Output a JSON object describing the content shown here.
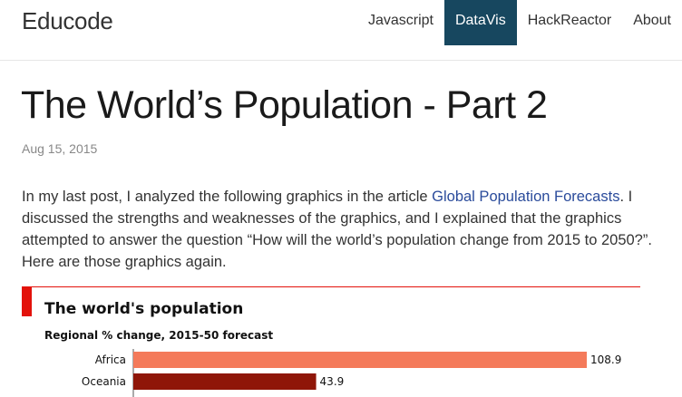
{
  "navbar": {
    "brand": "Educode",
    "items": [
      {
        "label": "Javascript",
        "active": false
      },
      {
        "label": "DataVis",
        "active": true
      },
      {
        "label": "HackReactor",
        "active": false
      },
      {
        "label": "About",
        "active": false
      }
    ]
  },
  "post": {
    "title": "The World’s Population - Part 2",
    "date": "Aug 15, 2015",
    "para_before": "In my last post, I analyzed the following graphics in the article ",
    "link_text": "Global Population Forecasts",
    "para_after": ". I discussed the strengths and weaknesses of the graphics, and I explained that the graphics attempted to answer the question “How will the world’s population change from 2015 to 2050?”. Here are those graphics again."
  },
  "figure": {
    "title": "The world's population",
    "subtitle": "Regional % change, 2015-50 forecast"
  },
  "colors": {
    "accent_red": "#e3120b",
    "nav_active": "#17475f",
    "link": "#2a4b9b"
  },
  "chart_data": {
    "type": "bar",
    "orientation": "horizontal",
    "title": "The world's population",
    "subtitle": "Regional % change, 2015-50 forecast",
    "categories": [
      "Africa",
      "Oceania"
    ],
    "values": [
      108.9,
      43.9
    ],
    "colors": [
      "#f47a5a",
      "#8f1608"
    ],
    "data_labels": [
      "108.9",
      "43.9"
    ]
  }
}
